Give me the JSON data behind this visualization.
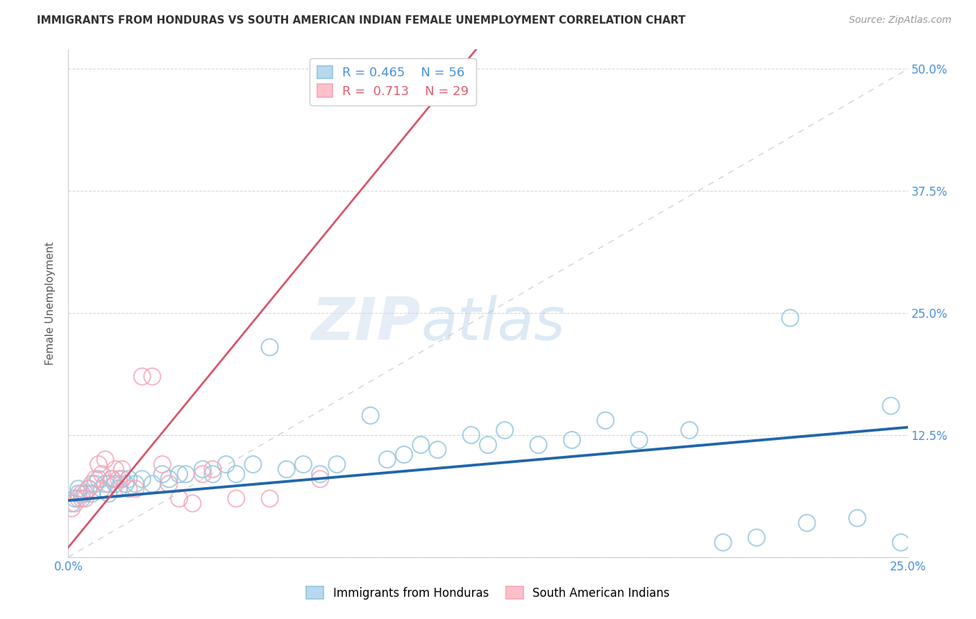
{
  "title": "IMMIGRANTS FROM HONDURAS VS SOUTH AMERICAN INDIAN FEMALE UNEMPLOYMENT CORRELATION CHART",
  "source": "Source: ZipAtlas.com",
  "ylabel": "Female Unemployment",
  "xlim": [
    0.0,
    0.25
  ],
  "ylim": [
    0.0,
    0.52
  ],
  "xticks": [
    0.0,
    0.05,
    0.1,
    0.15,
    0.2,
    0.25
  ],
  "yticks": [
    0.0,
    0.125,
    0.25,
    0.375,
    0.5
  ],
  "ytick_labels": [
    "",
    "12.5%",
    "25.0%",
    "37.5%",
    "50.0%"
  ],
  "xtick_labels": [
    "0.0%",
    "",
    "",
    "",
    "",
    "25.0%"
  ],
  "r_blue": 0.465,
  "n_blue": 56,
  "r_pink": 0.713,
  "n_pink": 29,
  "blue_color": "#92c5de",
  "pink_color": "#f4a6b8",
  "blue_line_color": "#2166ac",
  "pink_line_color": "#d6546a",
  "diagonal_color": "#c8c8c8",
  "watermark_zip": "ZIP",
  "watermark_atlas": "atlas",
  "background_color": "#ffffff",
  "grid_color": "#d8d8d8",
  "blue_x": [
    0.001,
    0.002,
    0.003,
    0.003,
    0.004,
    0.005,
    0.006,
    0.007,
    0.008,
    0.009,
    0.01,
    0.011,
    0.012,
    0.013,
    0.014,
    0.015,
    0.016,
    0.017,
    0.018,
    0.02,
    0.022,
    0.025,
    0.028,
    0.03,
    0.033,
    0.035,
    0.04,
    0.043,
    0.047,
    0.05,
    0.055,
    0.06,
    0.065,
    0.07,
    0.075,
    0.08,
    0.09,
    0.095,
    0.1,
    0.105,
    0.11,
    0.12,
    0.125,
    0.13,
    0.14,
    0.15,
    0.16,
    0.17,
    0.185,
    0.195,
    0.205,
    0.215,
    0.22,
    0.235,
    0.245,
    0.248
  ],
  "blue_y": [
    0.055,
    0.06,
    0.065,
    0.07,
    0.06,
    0.065,
    0.07,
    0.065,
    0.075,
    0.08,
    0.07,
    0.075,
    0.065,
    0.08,
    0.075,
    0.07,
    0.08,
    0.075,
    0.08,
    0.075,
    0.08,
    0.075,
    0.085,
    0.08,
    0.085,
    0.085,
    0.09,
    0.085,
    0.095,
    0.085,
    0.095,
    0.215,
    0.09,
    0.095,
    0.085,
    0.095,
    0.145,
    0.1,
    0.105,
    0.115,
    0.11,
    0.125,
    0.115,
    0.13,
    0.115,
    0.12,
    0.14,
    0.12,
    0.13,
    0.015,
    0.02,
    0.245,
    0.035,
    0.04,
    0.155,
    0.015
  ],
  "pink_x": [
    0.001,
    0.002,
    0.003,
    0.004,
    0.005,
    0.006,
    0.007,
    0.008,
    0.009,
    0.01,
    0.011,
    0.012,
    0.013,
    0.014,
    0.015,
    0.016,
    0.018,
    0.02,
    0.022,
    0.025,
    0.028,
    0.03,
    0.033,
    0.037,
    0.04,
    0.043,
    0.05,
    0.06,
    0.075
  ],
  "pink_y": [
    0.05,
    0.055,
    0.06,
    0.065,
    0.06,
    0.07,
    0.075,
    0.08,
    0.095,
    0.085,
    0.1,
    0.075,
    0.08,
    0.09,
    0.08,
    0.09,
    0.07,
    0.07,
    0.185,
    0.185,
    0.095,
    0.075,
    0.06,
    0.055,
    0.085,
    0.09,
    0.06,
    0.06,
    0.08
  ],
  "blue_intercept": 0.058,
  "blue_slope": 0.3,
  "pink_intercept": 0.01,
  "pink_slope": 4.2
}
